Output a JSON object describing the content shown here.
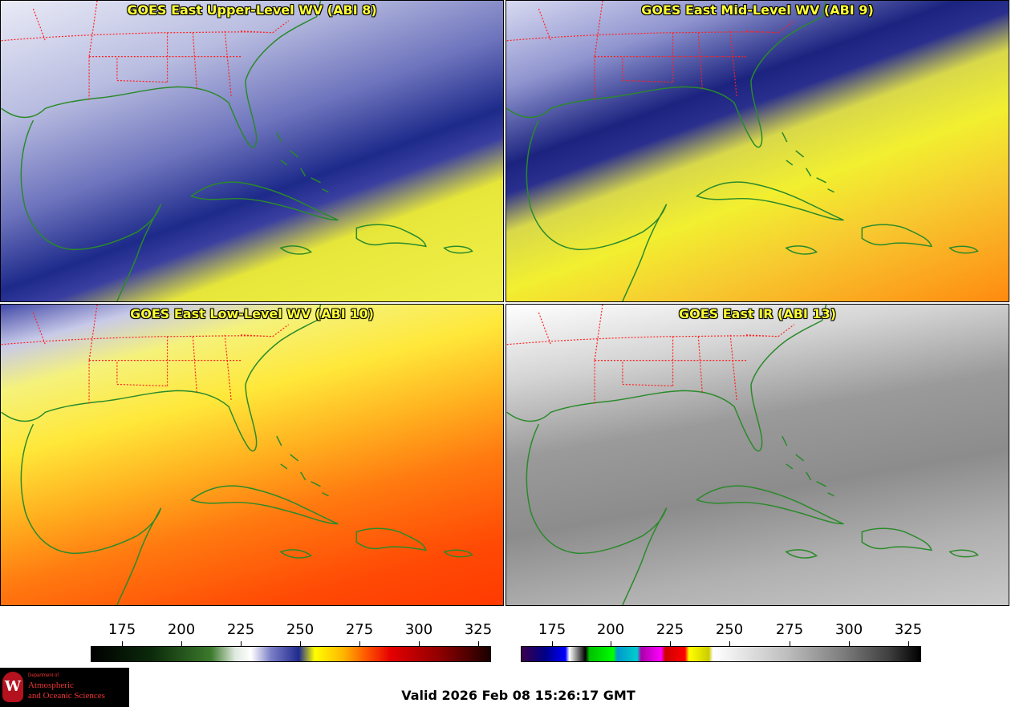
{
  "panels": [
    {
      "title": "GOES East Upper-Level WV (ABI 8)"
    },
    {
      "title": "GOES East Mid-Level WV (ABI 9)"
    },
    {
      "title": "GOES East Low-Level WV (ABI 10)"
    },
    {
      "title": "GOES East IR (ABI 13)"
    }
  ],
  "colorbars": {
    "wv_ticks": [
      "175",
      "200",
      "225",
      "250",
      "275",
      "300",
      "325"
    ],
    "ir_ticks": [
      "175",
      "200",
      "225",
      "250",
      "275",
      "300",
      "325"
    ]
  },
  "logo": {
    "seal_letter": "W",
    "dept_prefix": "Department of",
    "line1": "Atmospheric",
    "line2": "and Oceanic Sciences"
  },
  "valid_time": "Valid 2026 Feb 08 15:26:17 GMT",
  "colors": {
    "title_text": "#ffff33",
    "coastline": "#2a8a2a",
    "state_border": "#ff2020"
  }
}
